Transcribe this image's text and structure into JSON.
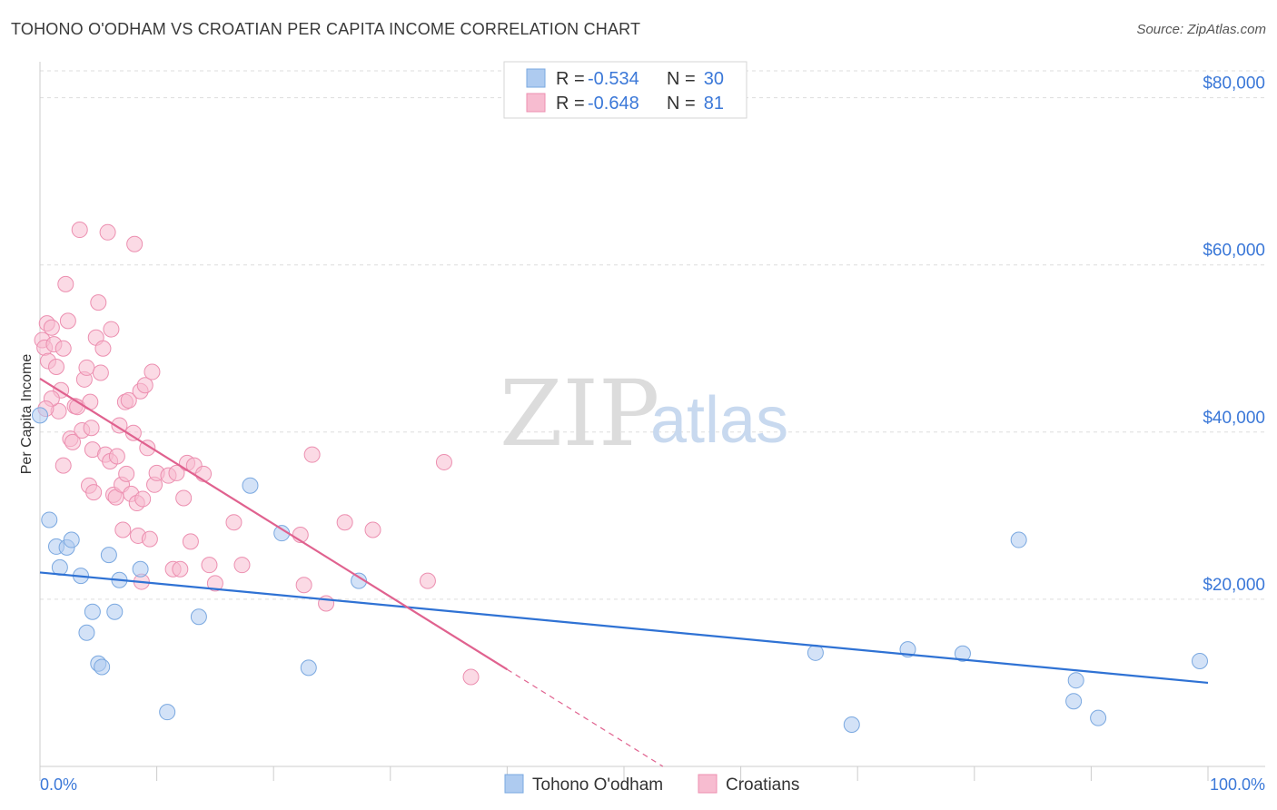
{
  "header": {
    "title": "TOHONO O'ODHAM VS CROATIAN PER CAPITA INCOME CORRELATION CHART",
    "source": "Source: ZipAtlas.com"
  },
  "watermark": {
    "zip": "ZIP",
    "atlas": "atlas"
  },
  "chart_data": {
    "type": "scatter",
    "title": "TOHONO O'ODHAM VS CROATIAN PER CAPITA INCOME CORRELATION CHART",
    "ylabel": "Per Capita Income",
    "xlabel": "",
    "xlim": [
      0,
      100
    ],
    "ylim": [
      0,
      83000
    ],
    "x_tick_labels": {
      "left": "0.0%",
      "right": "100.0%"
    },
    "y_ticks": [
      {
        "value": 20000,
        "label": "$20,000"
      },
      {
        "value": 40000,
        "label": "$40,000"
      },
      {
        "value": 60000,
        "label": "$60,000"
      },
      {
        "value": 80000,
        "label": "$80,000"
      }
    ],
    "legend": {
      "rows": [
        {
          "r_label": "R =",
          "r_value": "-0.534",
          "n_label": "N =",
          "n_value": "30",
          "color": "#aecbf0"
        },
        {
          "r_label": "R =",
          "r_value": "-0.648",
          "n_label": "N =",
          "n_value": "81",
          "color": "#f7bcd0"
        }
      ]
    },
    "series": [
      {
        "name": "Tohono O'odham",
        "color": "#aecbf0",
        "stroke": "#7aa8e0",
        "trend_color": "#2f72d4",
        "trend": {
          "x0": 0,
          "y0": 23200,
          "x1": 100,
          "y1": 10000
        },
        "points": [
          [
            0.0,
            42000
          ],
          [
            0.8,
            29500
          ],
          [
            1.4,
            26300
          ],
          [
            1.7,
            23800
          ],
          [
            2.3,
            26200
          ],
          [
            2.7,
            27100
          ],
          [
            3.5,
            22800
          ],
          [
            4.5,
            18500
          ],
          [
            5.0,
            12300
          ],
          [
            5.3,
            11900
          ],
          [
            5.9,
            25300
          ],
          [
            6.4,
            18500
          ],
          [
            6.8,
            22300
          ],
          [
            8.6,
            23600
          ],
          [
            10.9,
            6500
          ],
          [
            13.6,
            17900
          ],
          [
            18.0,
            33600
          ],
          [
            20.7,
            27900
          ],
          [
            23.0,
            11800
          ],
          [
            27.3,
            22200
          ],
          [
            4.0,
            16000
          ],
          [
            66.4,
            13600
          ],
          [
            69.5,
            5000
          ],
          [
            74.3,
            14000
          ],
          [
            79.0,
            13500
          ],
          [
            83.8,
            27100
          ],
          [
            88.5,
            7800
          ],
          [
            88.7,
            10300
          ],
          [
            90.6,
            5800
          ],
          [
            99.3,
            12600
          ]
        ]
      },
      {
        "name": "Croatians",
        "color": "#f7bcd0",
        "stroke": "#ec8fb0",
        "trend_color": "#e0628f",
        "trend": {
          "x0": 0,
          "y0": 46400,
          "x1": 40,
          "y1": 11600,
          "dash_x1": 60,
          "dash_y1": -6000
        },
        "points": [
          [
            0.2,
            51000
          ],
          [
            0.4,
            50100
          ],
          [
            0.6,
            53000
          ],
          [
            0.7,
            48500
          ],
          [
            1.0,
            52500
          ],
          [
            1.2,
            50500
          ],
          [
            1.4,
            47800
          ],
          [
            1.6,
            42500
          ],
          [
            1.8,
            45000
          ],
          [
            2.0,
            50000
          ],
          [
            2.2,
            57700
          ],
          [
            2.4,
            53300
          ],
          [
            2.6,
            39200
          ],
          [
            2.8,
            38800
          ],
          [
            3.0,
            43100
          ],
          [
            3.2,
            43000
          ],
          [
            3.4,
            64200
          ],
          [
            3.6,
            40200
          ],
          [
            3.8,
            46300
          ],
          [
            4.0,
            47700
          ],
          [
            4.2,
            33600
          ],
          [
            4.3,
            43600
          ],
          [
            4.4,
            40500
          ],
          [
            4.5,
            37900
          ],
          [
            4.6,
            32800
          ],
          [
            4.8,
            51300
          ],
          [
            5.0,
            55500
          ],
          [
            5.2,
            47100
          ],
          [
            5.4,
            50000
          ],
          [
            5.6,
            37300
          ],
          [
            5.8,
            63900
          ],
          [
            6.0,
            36500
          ],
          [
            6.1,
            52300
          ],
          [
            6.3,
            32500
          ],
          [
            6.5,
            32200
          ],
          [
            6.6,
            37100
          ],
          [
            6.8,
            40800
          ],
          [
            7.0,
            33700
          ],
          [
            7.1,
            28300
          ],
          [
            7.3,
            43600
          ],
          [
            7.4,
            35000
          ],
          [
            7.6,
            43800
          ],
          [
            7.8,
            32600
          ],
          [
            8.0,
            39900
          ],
          [
            8.1,
            62500
          ],
          [
            8.3,
            31500
          ],
          [
            8.4,
            27600
          ],
          [
            8.6,
            44900
          ],
          [
            8.7,
            22100
          ],
          [
            8.8,
            32000
          ],
          [
            9.0,
            45600
          ],
          [
            9.2,
            38100
          ],
          [
            9.4,
            27200
          ],
          [
            9.6,
            47200
          ],
          [
            9.8,
            33700
          ],
          [
            10.0,
            35100
          ],
          [
            11.0,
            34800
          ],
          [
            11.4,
            23600
          ],
          [
            11.7,
            35100
          ],
          [
            12.0,
            23600
          ],
          [
            12.3,
            32100
          ],
          [
            12.6,
            36300
          ],
          [
            12.9,
            26900
          ],
          [
            13.2,
            36000
          ],
          [
            14.0,
            35000
          ],
          [
            14.5,
            24100
          ],
          [
            15.0,
            21900
          ],
          [
            16.6,
            29200
          ],
          [
            17.3,
            24100
          ],
          [
            22.3,
            27700
          ],
          [
            22.6,
            21700
          ],
          [
            23.3,
            37300
          ],
          [
            24.5,
            19500
          ],
          [
            26.1,
            29200
          ],
          [
            28.5,
            28300
          ],
          [
            33.2,
            22200
          ],
          [
            34.6,
            36400
          ],
          [
            36.9,
            10700
          ],
          [
            1.0,
            44000
          ],
          [
            2.0,
            36000
          ],
          [
            0.5,
            42800
          ]
        ]
      }
    ]
  },
  "bottom_legend": [
    {
      "label": "Tohono O'odham",
      "color": "#aecbf0"
    },
    {
      "label": "Croatians",
      "color": "#f7bcd0"
    }
  ]
}
